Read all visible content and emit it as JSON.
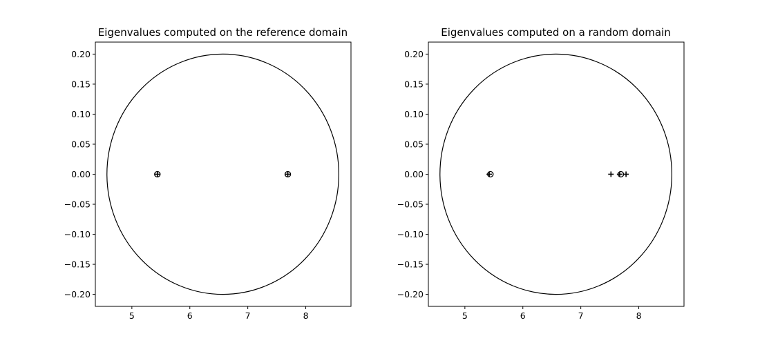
{
  "chart_data": [
    {
      "type": "scatter",
      "title": "Eigenvalues computed on the reference domain",
      "xlabel": "",
      "ylabel": "",
      "xlim": [
        4.37,
        8.78
      ],
      "ylim": [
        -0.22,
        0.22
      ],
      "xticks": [
        "5",
        "6",
        "7",
        "8"
      ],
      "yticks": [
        "0.20",
        "0.15",
        "0.10",
        "0.05",
        "0.00",
        "−0.05",
        "−0.10",
        "−0.15",
        "−0.20"
      ],
      "grid": false,
      "circle": {
        "center": [
          6.57,
          0.0
        ],
        "radius_x": 2.0,
        "radius_y": 0.2
      },
      "series": [
        {
          "marker": "plus",
          "points": [
            [
              5.44,
              0.0
            ],
            [
              7.69,
              0.0
            ]
          ]
        },
        {
          "marker": "circle",
          "points": [
            [
              5.44,
              0.0
            ],
            [
              7.69,
              0.0
            ]
          ]
        }
      ]
    },
    {
      "type": "scatter",
      "title": "Eigenvalues computed on a random domain",
      "xlabel": "",
      "ylabel": "",
      "xlim": [
        4.37,
        8.78
      ],
      "ylim": [
        -0.22,
        0.22
      ],
      "xticks": [
        "5",
        "6",
        "7",
        "8"
      ],
      "yticks": [
        "0.20",
        "0.15",
        "0.10",
        "0.05",
        "0.00",
        "−0.05",
        "−0.10",
        "−0.15",
        "−0.20"
      ],
      "grid": false,
      "circle": {
        "center": [
          6.57,
          0.0
        ],
        "radius_x": 2.0,
        "radius_y": 0.2
      },
      "series": [
        {
          "marker": "plus",
          "points": [
            [
              5.42,
              0.0
            ],
            [
              7.52,
              0.0
            ],
            [
              7.67,
              0.0
            ],
            [
              7.78,
              0.0
            ]
          ]
        },
        {
          "marker": "circle",
          "points": [
            [
              5.44,
              0.0
            ],
            [
              7.69,
              0.0
            ]
          ]
        }
      ]
    }
  ]
}
